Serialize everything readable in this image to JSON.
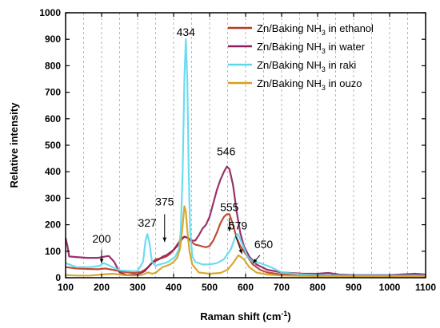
{
  "chart_data": {
    "type": "line",
    "xlabel": "Raman shift (cm",
    "xlabel_sup": "-1",
    "xlabel_end": ")",
    "ylabel": "Relative intensity",
    "xlim": [
      100,
      1100
    ],
    "ylim": [
      0,
      1000
    ],
    "xticks": [
      100,
      200,
      300,
      400,
      500,
      600,
      700,
      800,
      900,
      1000,
      1100
    ],
    "yticks": [
      0,
      100,
      200,
      300,
      400,
      500,
      600,
      700,
      800,
      900,
      1000
    ],
    "grid": "vertical dashed",
    "legend_position": "top-right",
    "series": [
      {
        "legend_prefix": "Zn/Baking NH",
        "legend_sub": "3",
        "legend_suffix": " in ethanol",
        "color": "#b83a1e",
        "points": [
          [
            100,
            40
          ],
          [
            130,
            35
          ],
          [
            160,
            33
          ],
          [
            190,
            32
          ],
          [
            210,
            35
          ],
          [
            230,
            30
          ],
          [
            260,
            22
          ],
          [
            290,
            18
          ],
          [
            310,
            22
          ],
          [
            320,
            30
          ],
          [
            330,
            40
          ],
          [
            340,
            55
          ],
          [
            350,
            70
          ],
          [
            360,
            72
          ],
          [
            370,
            75
          ],
          [
            380,
            80
          ],
          [
            390,
            90
          ],
          [
            400,
            105
          ],
          [
            410,
            125
          ],
          [
            420,
            145
          ],
          [
            430,
            155
          ],
          [
            440,
            150
          ],
          [
            450,
            135
          ],
          [
            460,
            125
          ],
          [
            470,
            122
          ],
          [
            480,
            118
          ],
          [
            490,
            115
          ],
          [
            500,
            120
          ],
          [
            510,
            140
          ],
          [
            520,
            170
          ],
          [
            530,
            205
          ],
          [
            540,
            230
          ],
          [
            548,
            240
          ],
          [
            555,
            240
          ],
          [
            565,
            200
          ],
          [
            575,
            150
          ],
          [
            585,
            120
          ],
          [
            595,
            100
          ],
          [
            605,
            80
          ],
          [
            620,
            50
          ],
          [
            640,
            30
          ],
          [
            660,
            20
          ],
          [
            700,
            12
          ],
          [
            800,
            10
          ],
          [
            900,
            8
          ],
          [
            1000,
            8
          ],
          [
            1100,
            8
          ]
        ]
      },
      {
        "legend_prefix": "Zn/Baking NH",
        "legend_sub": "3",
        "legend_suffix": " in water",
        "color": "#8c1c5c",
        "points": [
          [
            100,
            150
          ],
          [
            105,
            120
          ],
          [
            110,
            80
          ],
          [
            130,
            78
          ],
          [
            160,
            75
          ],
          [
            190,
            75
          ],
          [
            210,
            80
          ],
          [
            220,
            82
          ],
          [
            235,
            60
          ],
          [
            250,
            20
          ],
          [
            270,
            10
          ],
          [
            300,
            12
          ],
          [
            320,
            25
          ],
          [
            335,
            50
          ],
          [
            345,
            60
          ],
          [
            360,
            70
          ],
          [
            370,
            80
          ],
          [
            380,
            85
          ],
          [
            390,
            95
          ],
          [
            400,
            105
          ],
          [
            410,
            120
          ],
          [
            420,
            140
          ],
          [
            430,
            155
          ],
          [
            440,
            150
          ],
          [
            450,
            140
          ],
          [
            460,
            140
          ],
          [
            470,
            160
          ],
          [
            480,
            185
          ],
          [
            490,
            200
          ],
          [
            500,
            230
          ],
          [
            510,
            280
          ],
          [
            520,
            330
          ],
          [
            530,
            370
          ],
          [
            540,
            400
          ],
          [
            548,
            420
          ],
          [
            555,
            410
          ],
          [
            565,
            350
          ],
          [
            575,
            250
          ],
          [
            585,
            170
          ],
          [
            595,
            120
          ],
          [
            610,
            80
          ],
          [
            630,
            50
          ],
          [
            660,
            30
          ],
          [
            700,
            20
          ],
          [
            760,
            15
          ],
          [
            800,
            15
          ],
          [
            830,
            18
          ],
          [
            860,
            12
          ],
          [
            900,
            10
          ],
          [
            1000,
            10
          ],
          [
            1070,
            15
          ],
          [
            1100,
            12
          ]
        ]
      },
      {
        "legend_prefix": "Zn/Baking NH",
        "legend_sub": "3",
        "legend_suffix": " in raki",
        "color": "#5cd8ee",
        "points": [
          [
            100,
            55
          ],
          [
            130,
            40
          ],
          [
            170,
            40
          ],
          [
            195,
            45
          ],
          [
            205,
            55
          ],
          [
            215,
            50
          ],
          [
            230,
            40
          ],
          [
            250,
            28
          ],
          [
            280,
            25
          ],
          [
            300,
            25
          ],
          [
            315,
            60
          ],
          [
            322,
            140
          ],
          [
            327,
            165
          ],
          [
            333,
            130
          ],
          [
            340,
            60
          ],
          [
            350,
            45
          ],
          [
            360,
            50
          ],
          [
            375,
            55
          ],
          [
            385,
            60
          ],
          [
            395,
            70
          ],
          [
            405,
            80
          ],
          [
            415,
            110
          ],
          [
            420,
            180
          ],
          [
            425,
            400
          ],
          [
            430,
            750
          ],
          [
            434,
            900
          ],
          [
            438,
            750
          ],
          [
            442,
            400
          ],
          [
            446,
            180
          ],
          [
            452,
            80
          ],
          [
            460,
            60
          ],
          [
            480,
            50
          ],
          [
            500,
            50
          ],
          [
            520,
            55
          ],
          [
            540,
            70
          ],
          [
            560,
            110
          ],
          [
            570,
            150
          ],
          [
            579,
            165
          ],
          [
            590,
            130
          ],
          [
            605,
            80
          ],
          [
            620,
            60
          ],
          [
            640,
            55
          ],
          [
            650,
            50
          ],
          [
            670,
            40
          ],
          [
            700,
            20
          ],
          [
            760,
            12
          ],
          [
            800,
            10
          ],
          [
            900,
            8
          ],
          [
            1000,
            8
          ],
          [
            1100,
            8
          ]
        ]
      },
      {
        "legend_prefix": "Zn/Baking NH",
        "legend_sub": "3",
        "legend_suffix": " in ouzo",
        "color": "#d4a018",
        "points": [
          [
            100,
            10
          ],
          [
            130,
            8
          ],
          [
            170,
            8
          ],
          [
            200,
            12
          ],
          [
            230,
            15
          ],
          [
            260,
            10
          ],
          [
            290,
            8
          ],
          [
            310,
            10
          ],
          [
            320,
            15
          ],
          [
            330,
            20
          ],
          [
            340,
            15
          ],
          [
            350,
            18
          ],
          [
            360,
            30
          ],
          [
            370,
            40
          ],
          [
            380,
            45
          ],
          [
            390,
            50
          ],
          [
            400,
            60
          ],
          [
            410,
            75
          ],
          [
            418,
            110
          ],
          [
            424,
            180
          ],
          [
            430,
            270
          ],
          [
            434,
            250
          ],
          [
            438,
            180
          ],
          [
            444,
            100
          ],
          [
            452,
            50
          ],
          [
            470,
            20
          ],
          [
            500,
            15
          ],
          [
            530,
            18
          ],
          [
            550,
            30
          ],
          [
            565,
            55
          ],
          [
            580,
            85
          ],
          [
            595,
            70
          ],
          [
            610,
            40
          ],
          [
            630,
            20
          ],
          [
            660,
            12
          ],
          [
            700,
            8
          ],
          [
            800,
            6
          ],
          [
            900,
            5
          ],
          [
            1000,
            5
          ],
          [
            1100,
            5
          ]
        ]
      }
    ],
    "annotations": [
      {
        "label": "434",
        "lx": 434,
        "ly": 900
      },
      {
        "label": "546",
        "lx": 546,
        "ly": 450
      },
      {
        "label": "375",
        "lx": 375,
        "ly": 260
      },
      {
        "label": "327",
        "lx": 327,
        "ly": 180
      },
      {
        "label": "555",
        "lx": 555,
        "ly": 240
      },
      {
        "label": "579",
        "lx": 579,
        "ly": 170
      },
      {
        "label": "650",
        "lx": 650,
        "ly": 100
      },
      {
        "label": "200",
        "lx": 200,
        "ly": 120
      }
    ]
  }
}
